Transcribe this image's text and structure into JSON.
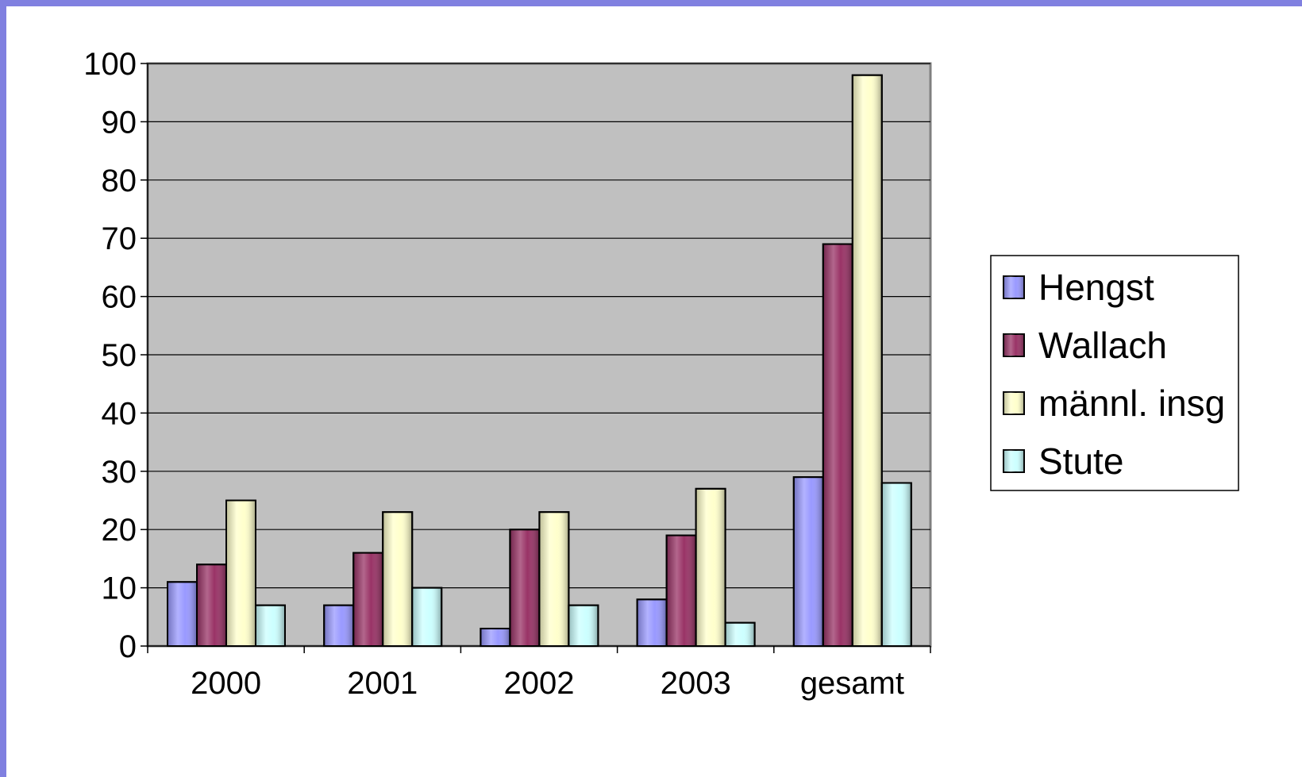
{
  "chart_data": {
    "type": "bar",
    "categories": [
      "2000",
      "2001",
      "2002",
      "2003",
      "gesamt"
    ],
    "series": [
      {
        "name": "Hengst",
        "color": "#9999ff",
        "values": [
          11,
          7,
          3,
          8,
          29
        ]
      },
      {
        "name": "Wallach",
        "color": "#993366",
        "values": [
          14,
          16,
          20,
          19,
          69
        ]
      },
      {
        "name": "männl. insg",
        "color": "#ffffcc",
        "values": [
          25,
          23,
          23,
          27,
          98
        ]
      },
      {
        "name": "Stute",
        "color": "#ccffff",
        "values": [
          7,
          10,
          7,
          4,
          28
        ]
      }
    ],
    "ylim": [
      0,
      100
    ],
    "yticks": [
      "0",
      "10",
      "20",
      "30",
      "40",
      "50",
      "60",
      "70",
      "80",
      "90",
      "100"
    ],
    "grid": true,
    "plot_background": "#c0c0c0",
    "legend_position": "right",
    "title": "",
    "xlabel": "",
    "ylabel": ""
  }
}
